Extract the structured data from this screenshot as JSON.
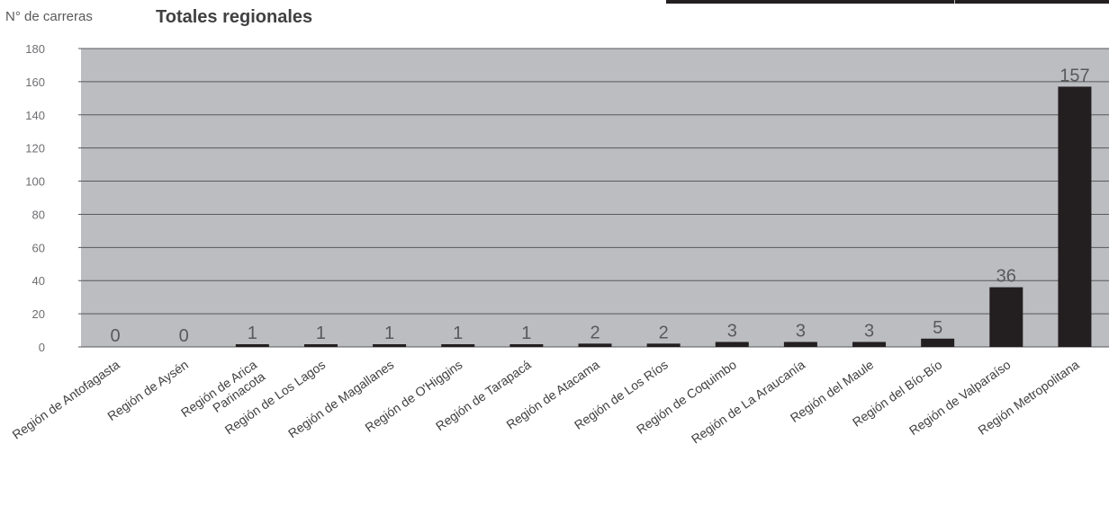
{
  "chart_data": {
    "type": "bar",
    "title": "Totales regionales",
    "ylabel": "N° de carreras",
    "xlabel": "",
    "ylim": [
      0,
      180
    ],
    "yticks": [
      0,
      20,
      40,
      60,
      80,
      100,
      120,
      140,
      160,
      180
    ],
    "categories": [
      "Región de Antofagasta",
      "Región de Aysén",
      "Región de Arica Parinacota",
      "Región de Los Lagos",
      "Región de Magallanes",
      "Región de O'Higgins",
      "Región de Tarapacá",
      "Región de Atacama",
      "Región de Los Ríos",
      "Región de Coquimbo",
      "Región de La Araucanía",
      "Región del Maule",
      "Región del Bío-Bío",
      "Región de Valparaíso",
      "Región Metropolitana"
    ],
    "values": [
      0,
      0,
      1,
      1,
      1,
      1,
      1,
      2,
      2,
      3,
      3,
      3,
      5,
      36,
      157
    ],
    "grid": true,
    "colors": {
      "plot_background": "#bcbdc0",
      "bar": "#231f20",
      "gridline": "#58595b",
      "axis_text": "#6d6e71"
    }
  }
}
